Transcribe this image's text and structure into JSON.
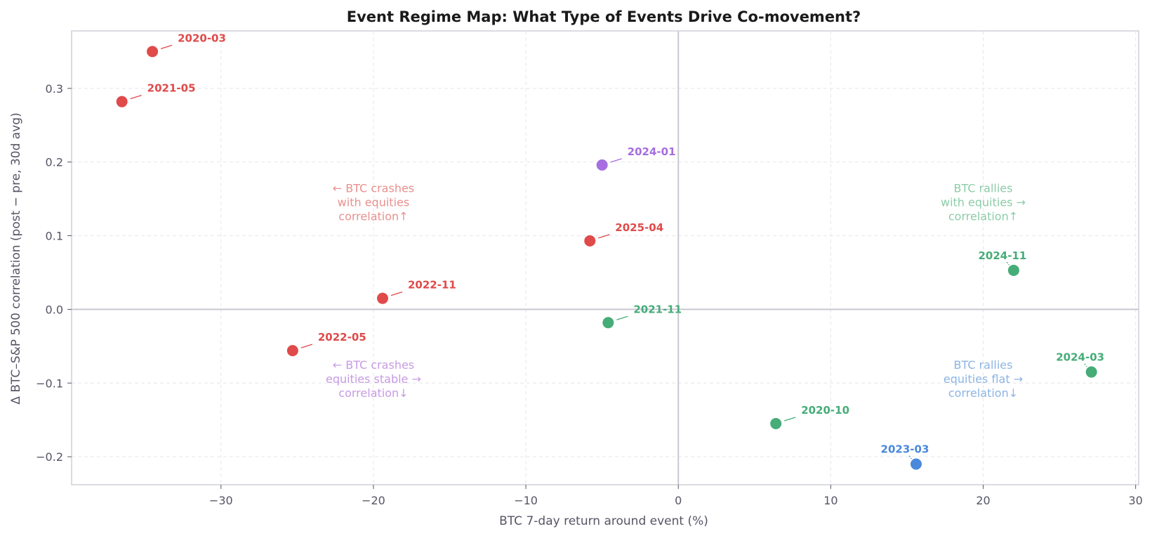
{
  "chart_data": {
    "type": "scatter",
    "title": "Event Regime Map: What Type of Events Drive Co-movement?",
    "xlabel": "BTC 7-day return around event (%)",
    "ylabel": "Δ BTC–S&P 500 correlation (post − pre, 30d avg)",
    "xlim": [
      -39.8,
      30.2
    ],
    "ylim": [
      -0.238,
      0.378
    ],
    "xticks": [
      -30,
      -20,
      -10,
      0,
      10,
      20,
      30
    ],
    "yticks": [
      -0.2,
      -0.1,
      0.0,
      0.1,
      0.2,
      0.3
    ],
    "xtick_labels": [
      "−30",
      "−20",
      "−10",
      "0",
      "10",
      "20",
      "30"
    ],
    "ytick_labels": [
      "−0.2",
      "−0.1",
      "0.0",
      "0.1",
      "0.2",
      "0.3"
    ],
    "grid": true,
    "colors": {
      "red": "#e04a4a",
      "green": "#46ac78",
      "blue": "#4a88dc",
      "purple": "#a66ee0"
    },
    "points": [
      {
        "label": "2020-03",
        "x": -34.5,
        "y": 0.35,
        "color": "#e04a4a",
        "label_pos": "upper-right"
      },
      {
        "label": "2021-05",
        "x": -36.5,
        "y": 0.282,
        "color": "#e04a4a",
        "label_pos": "upper-right"
      },
      {
        "label": "2024-01",
        "x": -5.0,
        "y": 0.196,
        "color": "#a66ee0",
        "label_pos": "upper-right"
      },
      {
        "label": "2025-04",
        "x": -5.8,
        "y": 0.093,
        "color": "#e04a4a",
        "label_pos": "upper-right"
      },
      {
        "label": "2022-11",
        "x": -19.4,
        "y": 0.015,
        "color": "#e04a4a",
        "label_pos": "upper-right"
      },
      {
        "label": "2021-11",
        "x": -4.6,
        "y": -0.018,
        "color": "#46ac78",
        "label_pos": "upper-right"
      },
      {
        "label": "2022-05",
        "x": -25.3,
        "y": -0.056,
        "color": "#e04a4a",
        "label_pos": "upper-right"
      },
      {
        "label": "2020-10",
        "x": 6.4,
        "y": -0.155,
        "color": "#46ac78",
        "label_pos": "upper-right"
      },
      {
        "label": "2023-03",
        "x": 15.6,
        "y": -0.21,
        "color": "#4a88dc",
        "label_pos": "above-left"
      },
      {
        "label": "2024-11",
        "x": 22.0,
        "y": 0.053,
        "color": "#46ac78",
        "label_pos": "above-left"
      },
      {
        "label": "2024-03",
        "x": 27.1,
        "y": -0.085,
        "color": "#46ac78",
        "label_pos": "above-left"
      }
    ],
    "quadrant_notes": [
      {
        "lines": [
          "← BTC crashes",
          "with equities",
          "correlation↑"
        ],
        "x": -20.0,
        "y": 0.145,
        "color": "#e8908e"
      },
      {
        "lines": [
          "BTC rallies",
          "with equities →",
          "correlation↑"
        ],
        "x": 20.0,
        "y": 0.145,
        "color": "#8ccca8"
      },
      {
        "lines": [
          "← BTC crashes",
          "equities stable →",
          "correlation↓"
        ],
        "x": -20.0,
        "y": -0.095,
        "color": "#c79ae4"
      },
      {
        "lines": [
          "BTC rallies",
          "equities flat →",
          "correlation↓"
        ],
        "x": 20.0,
        "y": -0.095,
        "color": "#8cb4e4"
      }
    ]
  }
}
